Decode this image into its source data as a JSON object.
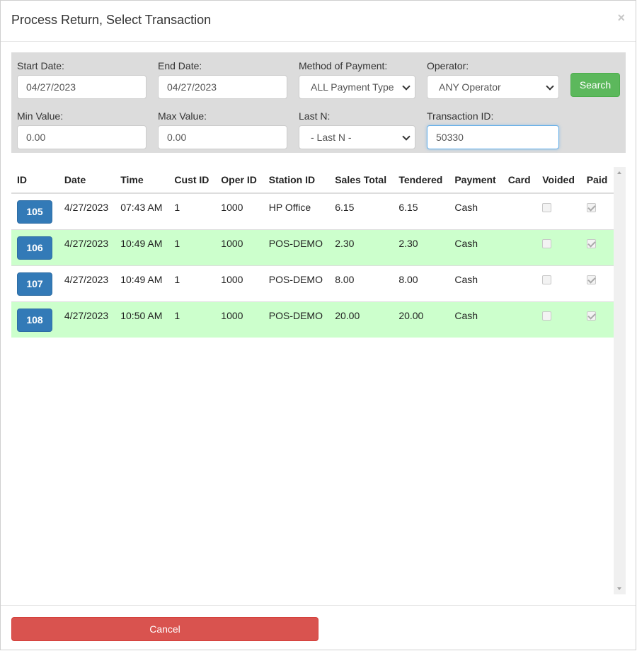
{
  "modal": {
    "title": "Process Return, Select Transaction",
    "close_glyph": "×"
  },
  "filters": {
    "start_date": {
      "label": "Start Date:",
      "value": "04/27/2023"
    },
    "end_date": {
      "label": "End Date:",
      "value": "04/27/2023"
    },
    "method_of_payment": {
      "label": "Method of Payment:",
      "value": "ALL Payment Type"
    },
    "operator": {
      "label": "Operator:",
      "value": "ANY Operator"
    },
    "search_label": "Search",
    "min_value": {
      "label": "Min Value:",
      "value": "0.00"
    },
    "max_value": {
      "label": "Max Value:",
      "value": "0.00"
    },
    "last_n": {
      "label": "Last N:",
      "value": "- Last N -"
    },
    "transaction_id": {
      "label": "Transaction ID:",
      "value": "50330"
    }
  },
  "table": {
    "headers": [
      "ID",
      "Date",
      "Time",
      "Cust ID",
      "Oper ID",
      "Station ID",
      "Sales Total",
      "Tendered",
      "Payment",
      "Card",
      "Voided",
      "Paid"
    ],
    "rows": [
      {
        "id": "105",
        "date": "4/27/2023",
        "time": "07:43 AM",
        "cust_id": "1",
        "oper_id": "1000",
        "station_id": "HP Office",
        "sales_total": "6.15",
        "tendered": "6.15",
        "payment": "Cash",
        "card": "",
        "voided": false,
        "paid": true
      },
      {
        "id": "106",
        "date": "4/27/2023",
        "time": "10:49 AM",
        "cust_id": "1",
        "oper_id": "1000",
        "station_id": "POS-DEMO",
        "sales_total": "2.30",
        "tendered": "2.30",
        "payment": "Cash",
        "card": "",
        "voided": false,
        "paid": true
      },
      {
        "id": "107",
        "date": "4/27/2023",
        "time": "10:49 AM",
        "cust_id": "1",
        "oper_id": "1000",
        "station_id": "POS-DEMO",
        "sales_total": "8.00",
        "tendered": "8.00",
        "payment": "Cash",
        "card": "",
        "voided": false,
        "paid": true
      },
      {
        "id": "108",
        "date": "4/27/2023",
        "time": "10:50 AM",
        "cust_id": "1",
        "oper_id": "1000",
        "station_id": "POS-DEMO",
        "sales_total": "20.00",
        "tendered": "20.00",
        "payment": "Cash",
        "card": "",
        "voided": false,
        "paid": true
      }
    ]
  },
  "footer": {
    "cancel_label": "Cancel"
  },
  "colors": {
    "search_button": "#5cb85c",
    "id_button": "#337ab7",
    "cancel_button": "#d9534f",
    "alt_row": "#ccffcc",
    "filter_panel": "#dcdcdc"
  }
}
